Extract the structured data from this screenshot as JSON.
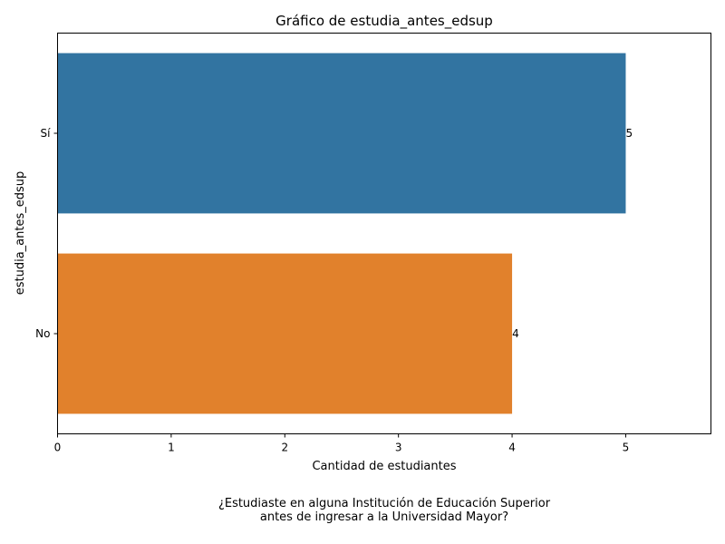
{
  "chart_data": {
    "type": "bar",
    "orientation": "horizontal",
    "title": "Gráfico de estudia_antes_edsup",
    "xlabel": "Cantidad de estudiantes",
    "ylabel": "estudia_antes_edsup",
    "categories": [
      "Sí",
      "No"
    ],
    "values": [
      5,
      4
    ],
    "data_labels": [
      "5",
      "4"
    ],
    "colors": [
      "#3274a1",
      "#e1812c"
    ],
    "xlim": [
      0,
      5.75
    ],
    "xticks": [
      0,
      1,
      2,
      3,
      4,
      5
    ],
    "xtick_labels": [
      "0",
      "1",
      "2",
      "3",
      "4",
      "5"
    ],
    "grid": false,
    "legend": "none"
  },
  "caption": {
    "line1": "¿Estudiaste en alguna Institución de Educación Superior",
    "line2": "antes de ingresar a la Universidad Mayor?"
  }
}
